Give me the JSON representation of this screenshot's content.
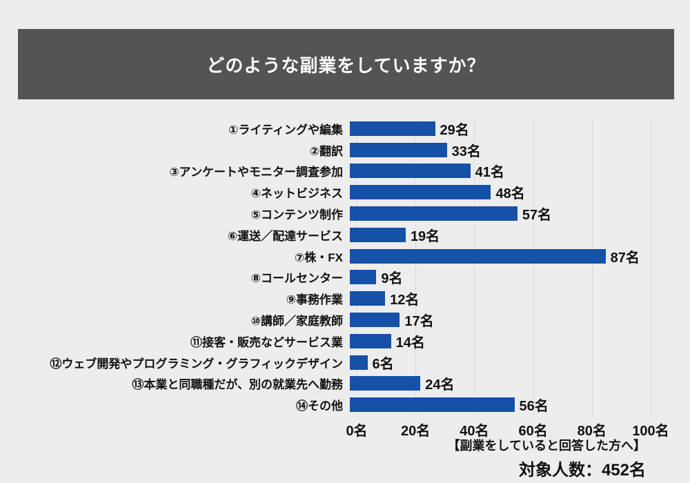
{
  "page": {
    "background_color": "#EDEDED",
    "text_color": "#111111"
  },
  "header": {
    "title": "どのような副業をしていますか？",
    "background_color": "#545454",
    "text_color": "#FFFFFF"
  },
  "chart_data": {
    "type": "bar",
    "orientation": "horizontal",
    "title": "どのような副業をしていますか？",
    "categories": [
      "①ライティングや編集",
      "②翻訳",
      "③アンケートやモニター調査参加",
      "④ネットビジネス",
      "⑤コンテンツ制作",
      "⑥運送／配達サービス",
      "⑦株・FX",
      "⑧コールセンター",
      "⑨事務作業",
      "⑩講師／家庭教師",
      "⑪接客・販売などサービス業",
      "⑫ウェブ開発やプログラミング・グラフィックデザイン",
      "⑬本業と同職種だが、別の就業先へ勤務",
      "⑭その他"
    ],
    "values": [
      29,
      33,
      41,
      48,
      57,
      19,
      87,
      9,
      12,
      17,
      14,
      6,
      24,
      56
    ],
    "value_labels": [
      "29名",
      "33名",
      "41名",
      "48名",
      "57名",
      "19名",
      "87名",
      "9名",
      "12名",
      "17名",
      "14名",
      "6名",
      "24名",
      "56名"
    ],
    "unit": "名",
    "xlim": [
      0,
      100
    ],
    "x_ticks": [
      0,
      20,
      40,
      60,
      80,
      100
    ],
    "x_tick_labels": [
      "0名",
      "20名",
      "40名",
      "60名",
      "80名",
      "100名"
    ],
    "grid": true,
    "legend": false,
    "bar_color": "#1451A7",
    "gridline_color": "#D9D9D9"
  },
  "footer": {
    "note": "【副業をしていると回答した方へ】",
    "total": "対象人数：452名"
  }
}
